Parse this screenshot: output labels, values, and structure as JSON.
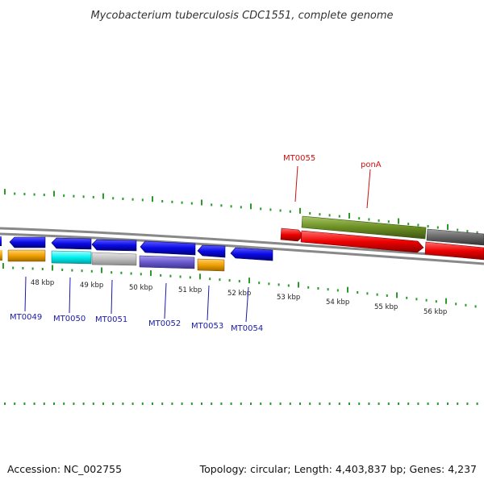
{
  "title": "Mycobacterium tuberculosis CDC1551, complete genome",
  "footer": {
    "accession": "Accession: NC_002755",
    "summary": "Topology: circular; Length: 4,403,837 bp; Genes: 4,237"
  },
  "kbp_labels": [
    "48 kbp",
    "49 kbp",
    "50 kbp",
    "51 kbp",
    "52 kbp",
    "53 kbp",
    "54 kbp",
    "55 kbp",
    "56 kbp"
  ],
  "gene_labels": [
    "MT0049",
    "MT0050",
    "MT0051",
    "MT0052",
    "MT0053",
    "MT0054",
    "MT0055",
    "ponA"
  ],
  "colors": {
    "blue": "#0a0ae6",
    "cyan": "#00e5e5",
    "gray": "#b8b8b8",
    "purple": "#6a5acd",
    "orange": "#f0a000",
    "red": "#ee0000",
    "olive": "#6b8e23",
    "darkgray": "#666666",
    "tick": "#2a9a2a",
    "backbone": "#7a7a7a",
    "label_blue": "#1a1aa8",
    "label_red": "#cc1111"
  }
}
